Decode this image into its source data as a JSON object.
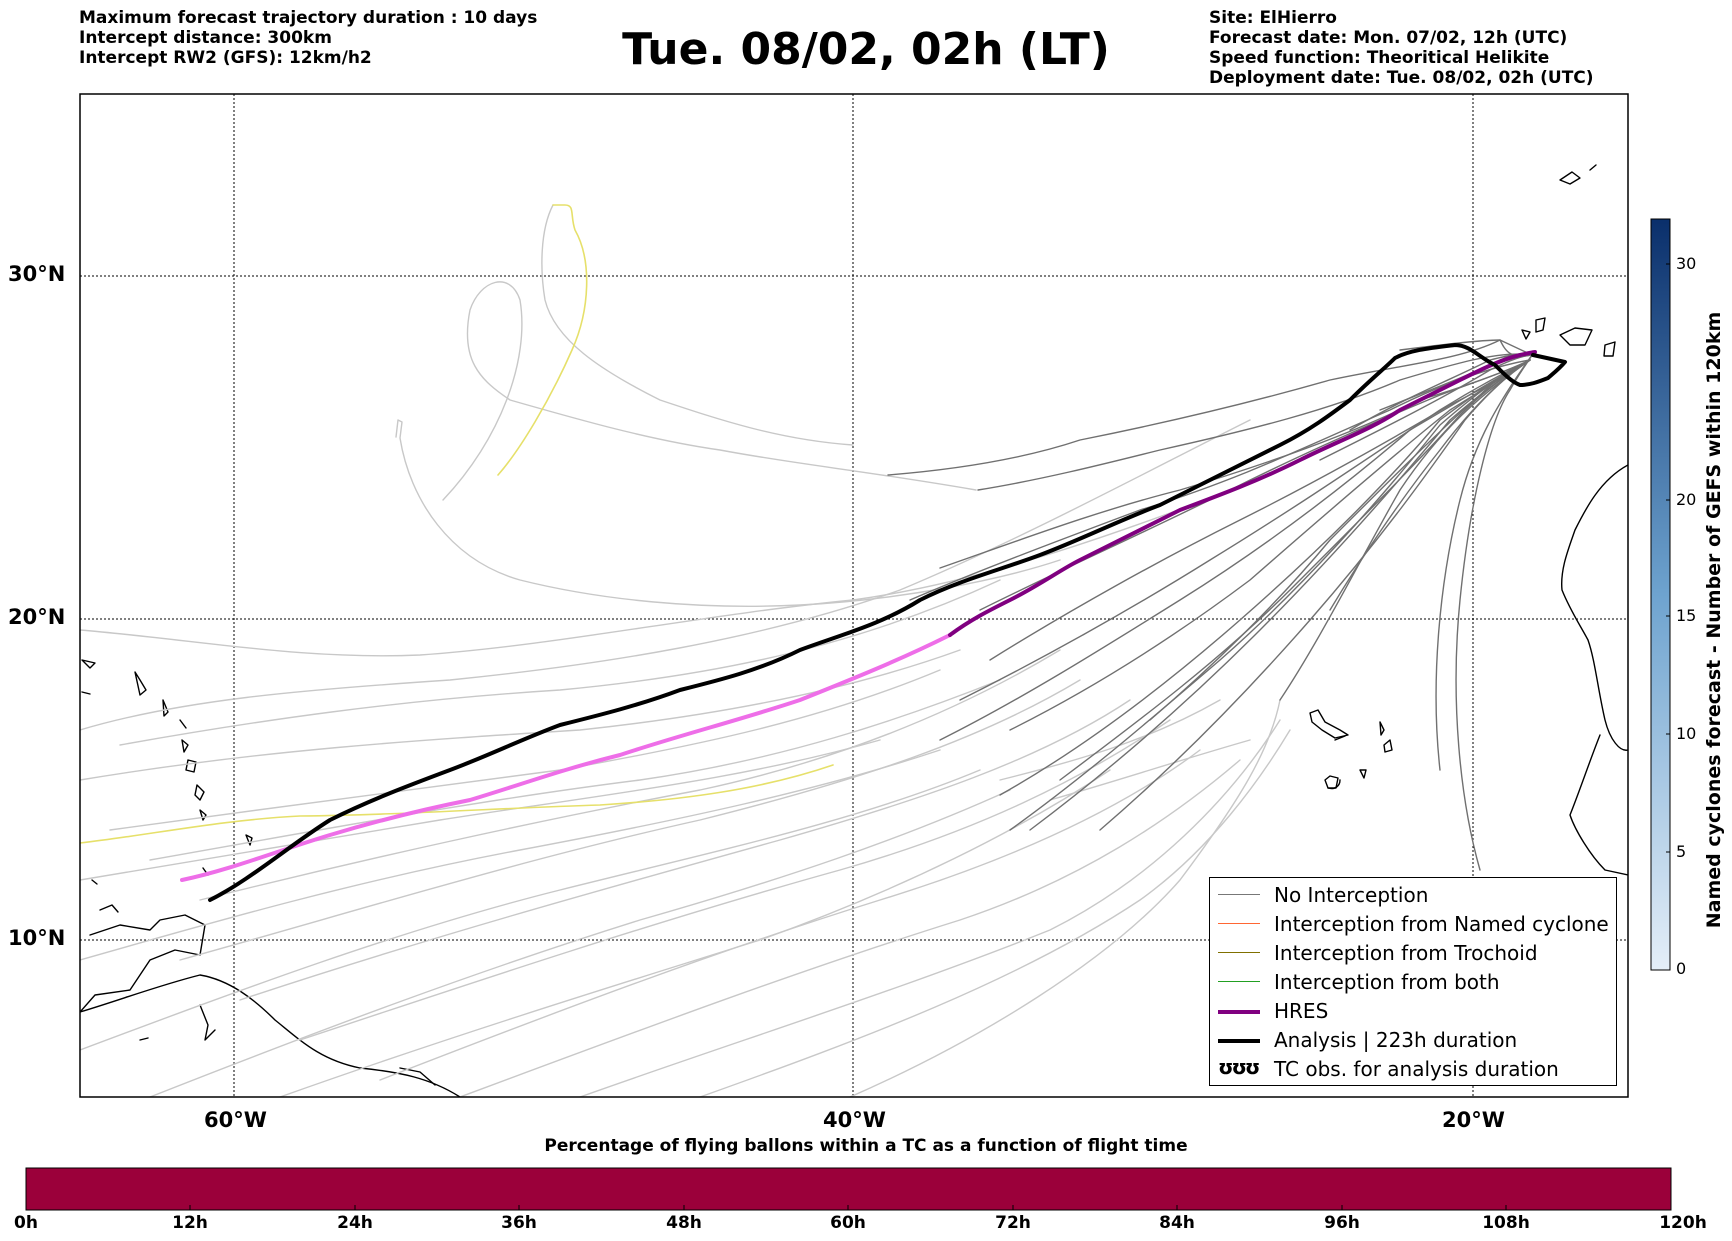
{
  "header": {
    "left": [
      "Maximum forecast trajectory duration : 10 days",
      "Intercept distance: 300km",
      "Intercept RW2 (GFS):  12km/h2"
    ],
    "title": "Tue. 08/02, 02h (LT)",
    "right": [
      "Site: ElHierro",
      "Forecast date: Mon. 07/02, 12h (UTC)",
      "Speed function: Theoritical Helikite",
      "Deployment date: Tue. 08/02, 02h (UTC)"
    ]
  },
  "map": {
    "lon_range": [
      -65,
      -15
    ],
    "lat_range": [
      5.5,
      34.8
    ],
    "lat_ticks": [
      "30°N",
      "20°N",
      "10°N"
    ],
    "lon_ticks": [
      "60°W",
      "40°W",
      "20°W"
    ],
    "release_site": {
      "lon": -18.0,
      "lat": 27.7
    }
  },
  "legend": {
    "items": [
      {
        "label": "No Interception",
        "color": "#777777"
      },
      {
        "label": "Interception from Named cyclone",
        "color": "#ff6633"
      },
      {
        "label": "Interception from Trochoid",
        "color": "#807000"
      },
      {
        "label": "Interception from both",
        "color": "#22a022"
      },
      {
        "label": "HRES",
        "color": "#800080"
      },
      {
        "label": "Analysis | 223h duration",
        "color": "#000000"
      },
      {
        "label": "TC obs. for analysis duration",
        "symbol": "ʊʊʊ"
      }
    ]
  },
  "colorbar_right": {
    "title": "Named cyclones forecast - Number of GEFS within 120km",
    "ticks": [
      "0",
      "5",
      "10",
      "15",
      "20",
      "30"
    ],
    "tick_values": [
      0,
      5,
      10,
      15,
      20,
      30
    ],
    "colors": [
      "#dfeaf6",
      "#0a2f6b"
    ]
  },
  "colorbar_bottom": {
    "title": "Percentage of flying ballons within a TC as a function of flight time",
    "ticks": [
      "0h",
      "12h",
      "24h",
      "36h",
      "48h",
      "60h",
      "72h",
      "84h",
      "96h",
      "108h",
      "120h"
    ],
    "fill_color": "#9b003a"
  }
}
